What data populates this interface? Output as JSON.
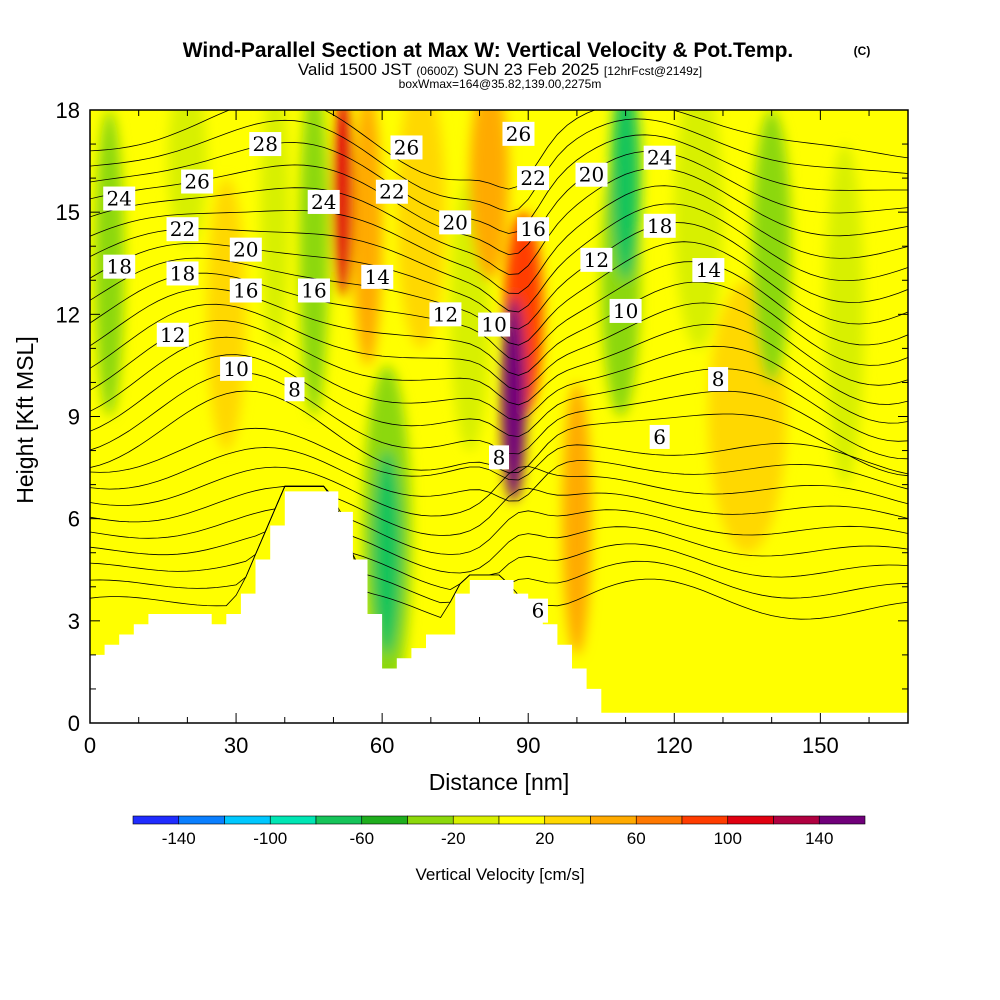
{
  "title": {
    "main": "Wind-Parallel Section at Max W: Vertical Velocity & Pot.Temp.",
    "copyright": "(C)",
    "valid_prefix": "Valid 1500 JST",
    "valid_utc": "(0600Z)",
    "valid_date": "SUN 23 Feb 2025",
    "forecast": "[12hrFcst@2149z]",
    "box_info": "boxWmax=164@35.82,139.00,2275m"
  },
  "chart_data": {
    "type": "heatmap",
    "xlabel": "Distance [nm]",
    "ylabel": "Height [Kft MSL]",
    "xlim": [
      0,
      168
    ],
    "ylim": [
      0,
      18
    ],
    "x_ticks": [
      "0",
      "30",
      "60",
      "90",
      "120",
      "150"
    ],
    "x_tick_values": [
      0,
      30,
      60,
      90,
      120,
      150
    ],
    "y_ticks": [
      "0",
      "3",
      "6",
      "9",
      "12",
      "15",
      "18"
    ],
    "y_tick_values": [
      0,
      3,
      6,
      9,
      12,
      15,
      18
    ],
    "terrain_kft": [
      [
        0,
        2.0
      ],
      [
        3,
        2.3
      ],
      [
        6,
        2.6
      ],
      [
        9,
        2.9
      ],
      [
        12,
        3.2
      ],
      [
        22,
        3.2
      ],
      [
        25,
        2.9
      ],
      [
        28,
        3.2
      ],
      [
        31,
        3.8
      ],
      [
        34,
        4.8
      ],
      [
        37,
        5.8
      ],
      [
        40,
        6.8
      ],
      [
        48,
        6.8
      ],
      [
        51,
        6.2
      ],
      [
        54,
        4.8
      ],
      [
        57,
        3.2
      ],
      [
        60,
        1.6
      ],
      [
        63,
        1.9
      ],
      [
        66,
        2.2
      ],
      [
        69,
        2.6
      ],
      [
        72,
        2.6
      ],
      [
        75,
        3.8
      ],
      [
        78,
        4.2
      ],
      [
        84,
        4.2
      ],
      [
        87,
        3.8
      ],
      [
        90,
        3.2
      ],
      [
        93,
        2.9
      ],
      [
        96,
        2.3
      ],
      [
        99,
        1.6
      ],
      [
        102,
        1.0
      ],
      [
        105,
        0.3
      ],
      [
        168,
        0.3
      ]
    ],
    "colorbar": {
      "label": "Vertical Velocity [cm/s]",
      "tick_labels": [
        "-140",
        "-100",
        "-60",
        "-20",
        "20",
        "60",
        "100",
        "140"
      ],
      "levels": [
        -160,
        -140,
        -120,
        -100,
        -80,
        -60,
        -40,
        -20,
        0,
        20,
        40,
        60,
        80,
        100,
        120,
        140,
        160
      ],
      "colors": [
        "#1f2cff",
        "#0a7fff",
        "#00c8ff",
        "#00e6b4",
        "#16c45a",
        "#1fae1e",
        "#8cd80c",
        "#d8f000",
        "#ffff00",
        "#ffd800",
        "#ffaa00",
        "#ff7800",
        "#ff3c00",
        "#e00010",
        "#b00040",
        "#70007a"
      ]
    },
    "vertical_velocity_features": [
      {
        "x": 4,
        "y": 13.5,
        "w": -40,
        "rx": 3,
        "ry": 4.5
      },
      {
        "x": 20,
        "y": 16.5,
        "w": -20,
        "rx": 4,
        "ry": 2.5
      },
      {
        "x": 28,
        "y": 12,
        "w": 20,
        "rx": 4,
        "ry": 4
      },
      {
        "x": 38,
        "y": 15,
        "w": -20,
        "rx": 3,
        "ry": 4
      },
      {
        "x": 46,
        "y": 14,
        "w": -40,
        "rx": 3,
        "ry": 5
      },
      {
        "x": 52,
        "y": 15.5,
        "w": 100,
        "rx": 2,
        "ry": 3
      },
      {
        "x": 57,
        "y": 14.5,
        "w": 40,
        "rx": 3,
        "ry": 4
      },
      {
        "x": 61,
        "y": 5,
        "w": -70,
        "rx": 3,
        "ry": 3
      },
      {
        "x": 61,
        "y": 5.5,
        "w": -30,
        "rx": 5,
        "ry": 5
      },
      {
        "x": 68,
        "y": 15,
        "w": 20,
        "rx": 5,
        "ry": 4
      },
      {
        "x": 78,
        "y": 12,
        "w": -20,
        "rx": 4,
        "ry": 4
      },
      {
        "x": 82,
        "y": 16,
        "w": 40,
        "rx": 4,
        "ry": 3
      },
      {
        "x": 87,
        "y": 9.5,
        "w": 150,
        "rx": 2.5,
        "ry": 3
      },
      {
        "x": 89,
        "y": 12,
        "w": 80,
        "rx": 4,
        "ry": 3
      },
      {
        "x": 100,
        "y": 6,
        "w": 40,
        "rx": 3,
        "ry": 4
      },
      {
        "x": 110,
        "y": 16,
        "w": -80,
        "rx": 3,
        "ry": 3
      },
      {
        "x": 109,
        "y": 13,
        "w": -40,
        "rx": 4,
        "ry": 4
      },
      {
        "x": 125,
        "y": 15,
        "w": -20,
        "rx": 5,
        "ry": 4
      },
      {
        "x": 135,
        "y": 9,
        "w": 20,
        "rx": 8,
        "ry": 4
      },
      {
        "x": 140,
        "y": 14,
        "w": -30,
        "rx": 4,
        "ry": 4
      },
      {
        "x": 155,
        "y": 12,
        "w": -20,
        "rx": 4,
        "ry": 5
      }
    ],
    "pot_temp_contour_labels": [
      {
        "text": "28",
        "x": 36,
        "y": 17.0
      },
      {
        "text": "26",
        "x": 22,
        "y": 15.9
      },
      {
        "text": "24",
        "x": 6,
        "y": 15.4
      },
      {
        "text": "22",
        "x": 19,
        "y": 14.5
      },
      {
        "text": "20",
        "x": 32,
        "y": 13.9
      },
      {
        "text": "18",
        "x": 6,
        "y": 13.4
      },
      {
        "text": "18",
        "x": 19,
        "y": 13.2
      },
      {
        "text": "16",
        "x": 32,
        "y": 12.7
      },
      {
        "text": "16",
        "x": 46,
        "y": 12.7
      },
      {
        "text": "24",
        "x": 48,
        "y": 15.3
      },
      {
        "text": "14",
        "x": 59,
        "y": 13.1
      },
      {
        "text": "26",
        "x": 65,
        "y": 16.9
      },
      {
        "text": "22",
        "x": 62,
        "y": 15.6
      },
      {
        "text": "20",
        "x": 75,
        "y": 14.7
      },
      {
        "text": "12",
        "x": 17,
        "y": 11.4
      },
      {
        "text": "12",
        "x": 73,
        "y": 12.0
      },
      {
        "text": "10",
        "x": 30,
        "y": 10.4
      },
      {
        "text": "8",
        "x": 42,
        "y": 9.8
      },
      {
        "text": "26",
        "x": 88,
        "y": 17.3
      },
      {
        "text": "22",
        "x": 91,
        "y": 16.0
      },
      {
        "text": "16",
        "x": 91,
        "y": 14.5
      },
      {
        "text": "10",
        "x": 83,
        "y": 11.7
      },
      {
        "text": "8",
        "x": 84,
        "y": 7.8
      },
      {
        "text": "6",
        "x": 92,
        "y": 3.3
      },
      {
        "text": "20",
        "x": 103,
        "y": 16.1
      },
      {
        "text": "24",
        "x": 117,
        "y": 16.6
      },
      {
        "text": "18",
        "x": 117,
        "y": 14.6
      },
      {
        "text": "12",
        "x": 104,
        "y": 13.6
      },
      {
        "text": "10",
        "x": 110,
        "y": 12.1
      },
      {
        "text": "14",
        "x": 127,
        "y": 13.3
      },
      {
        "text": "8",
        "x": 129,
        "y": 10.1
      },
      {
        "text": "6",
        "x": 117,
        "y": 8.4
      }
    ]
  }
}
